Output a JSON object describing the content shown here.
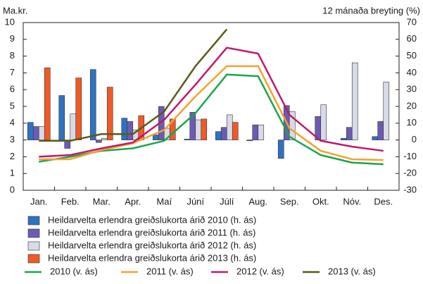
{
  "chart_data": {
    "type": "bar",
    "y_label": "Ma.kr.",
    "y2_label": "12 mánaða breyting (%)",
    "categories": [
      "Jan.",
      "Feb.",
      "Mar.",
      "Apr.",
      "Maí",
      "Júní",
      "Júlí",
      "Aug.",
      "Sep.",
      "Okt.",
      "Nóv.",
      "Des."
    ],
    "ylim": [
      0,
      10
    ],
    "yticks": [
      0,
      1,
      2,
      3,
      4,
      5,
      6,
      7,
      8,
      9,
      10
    ],
    "y2lim": [
      -30,
      70
    ],
    "y2ticks": [
      -30,
      -20,
      -10,
      0,
      10,
      20,
      30,
      40,
      50,
      60,
      70
    ],
    "series": [
      {
        "name": "Heildarvelta erlendra greiðslukorta árið 2010 (h. ás)",
        "type": "bar",
        "axis": "y2",
        "color": "#2f72c0",
        "values": [
          10.5,
          26.5,
          42,
          13,
          3,
          0.5,
          5,
          -0.5,
          -11,
          0,
          1,
          2
        ]
      },
      {
        "name": "Heildarvelta erlendra greiðslukorta árið 2011 (h. ás)",
        "type": "bar",
        "axis": "y2",
        "color": "#6a5cb5",
        "values": [
          8,
          -5,
          -1.5,
          11,
          20,
          16.5,
          7.5,
          9,
          20.5,
          14,
          7.5,
          11
        ]
      },
      {
        "name": "Heildarvelta erlendra greiðslukorta árið 2012 (h. ás)",
        "type": "bar",
        "axis": "y2",
        "color": "#d8dbe6",
        "values": [
          8,
          15.5,
          1,
          6,
          7,
          12,
          15,
          9,
          17,
          21,
          46,
          34.5
        ]
      },
      {
        "name": "Heildarvelta erlendra greiðslukorta árið 2013 (h. ás)",
        "type": "bar",
        "axis": "y2",
        "color": "#f05a28",
        "values": [
          43,
          37,
          31.5,
          14.5,
          12.5,
          12.5,
          10.5,
          null,
          null,
          null,
          null,
          null
        ]
      },
      {
        "name": "2010 (v. ás)",
        "type": "line",
        "color": "#1aa64a",
        "values": [
          1.7,
          2.0,
          2.35,
          2.5,
          2.95,
          4.6,
          6.9,
          6.8,
          3.2,
          2.1,
          1.65,
          1.55
        ]
      },
      {
        "name": "2011 (v. ás)",
        "type": "line",
        "color": "#f7a030",
        "values": [
          1.85,
          1.85,
          2.4,
          2.8,
          3.6,
          5.6,
          7.4,
          7.4,
          3.7,
          2.35,
          1.85,
          1.8
        ]
      },
      {
        "name": "2012 (v. ás)",
        "type": "line",
        "color": "#c0186e",
        "values": [
          2.0,
          2.1,
          2.5,
          2.85,
          4.2,
          6.3,
          8.5,
          8.15,
          4.5,
          2.95,
          2.6,
          2.35
        ]
      },
      {
        "name": "2013 (v. ás)",
        "type": "line",
        "color": "#5a5a1a",
        "values": [
          2.95,
          2.95,
          3.35,
          3.35,
          4.7,
          7.4,
          9.6,
          null,
          null,
          null,
          null,
          null
        ]
      }
    ]
  }
}
